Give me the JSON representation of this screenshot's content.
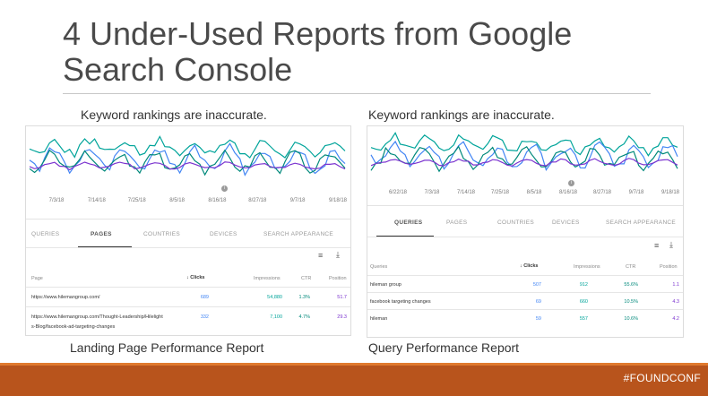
{
  "slide": {
    "title_line1": "4 Under-Used Reports from Google",
    "title_line2": "Search Console",
    "footer_tag": "#FOUNDCONF"
  },
  "left": {
    "caption_top": "Keyword rankings are inaccurate.",
    "caption_bottom": "Landing Page Performance Report",
    "dates": [
      "7/3/18",
      "7/14/18",
      "7/25/18",
      "8/5/18",
      "8/16/18",
      "8/27/18",
      "9/7/18",
      "9/18/18"
    ],
    "tabs": [
      "QUERIES",
      "PAGES",
      "COUNTRIES",
      "DEVICES",
      "SEARCH APPEARANCE"
    ],
    "active_tab": "PAGES",
    "headers": {
      "first": "Page",
      "clicks": "Clicks",
      "impressions": "Impressions",
      "ctr": "CTR",
      "position": "Position"
    },
    "rows": [
      {
        "name": "https://www.hilemangroup.com/",
        "clicks": "689",
        "impressions": "54,880",
        "ctr": "1.3%",
        "position": "51.7"
      },
      {
        "name": "https://www.hilemangroup.com/Thought-Leadership/Hilelight",
        "name2": "s-Blog/facebook-ad-targeting-changes",
        "clicks": "332",
        "impressions": "7,100",
        "ctr": "4.7%",
        "position": "29.3"
      }
    ]
  },
  "right": {
    "caption_top": "Keyword rankings are inaccurate.",
    "caption_bottom": "Query Performance Report",
    "dates": [
      "6/22/18",
      "7/3/18",
      "7/14/18",
      "7/25/18",
      "8/5/18",
      "8/16/18",
      "8/27/18",
      "9/7/18",
      "9/18/18"
    ],
    "tabs": [
      "QUERIES",
      "PAGES",
      "COUNTRIES",
      "DEVICES",
      "SEARCH APPEARANCE"
    ],
    "active_tab": "QUERIES",
    "headers": {
      "first": "Queries",
      "clicks": "Clicks",
      "impressions": "Impressions",
      "ctr": "CTR",
      "position": "Position"
    },
    "rows": [
      {
        "name": "hileman group",
        "clicks": "507",
        "impressions": "912",
        "ctr": "55.6%",
        "position": "1.1"
      },
      {
        "name": "facebook targeting changes",
        "clicks": "69",
        "impressions": "660",
        "ctr": "10.5%",
        "position": "4.3"
      },
      {
        "name": "hileman",
        "clicks": "59",
        "impressions": "557",
        "ctr": "10.6%",
        "position": "4.2"
      }
    ]
  },
  "colors": {
    "clicks": "#4285f4",
    "impressions": "#00a49a",
    "ctr": "#00897b",
    "position": "#7b33cf",
    "footer": "#b8541c",
    "footer_stripe": "#e07a2e"
  },
  "icons": {
    "filter": "filter-icon",
    "download": "download-icon",
    "info": "info-icon",
    "sort": "arrow-down-icon"
  }
}
